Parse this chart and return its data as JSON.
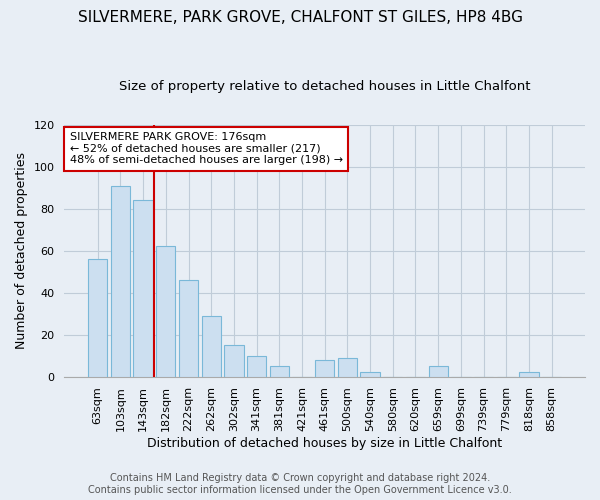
{
  "title": "SILVERMERE, PARK GROVE, CHALFONT ST GILES, HP8 4BG",
  "subtitle": "Size of property relative to detached houses in Little Chalfont",
  "xlabel": "Distribution of detached houses by size in Little Chalfont",
  "ylabel": "Number of detached properties",
  "bin_labels": [
    "63sqm",
    "103sqm",
    "143sqm",
    "182sqm",
    "222sqm",
    "262sqm",
    "302sqm",
    "341sqm",
    "381sqm",
    "421sqm",
    "461sqm",
    "500sqm",
    "540sqm",
    "580sqm",
    "620sqm",
    "659sqm",
    "699sqm",
    "739sqm",
    "779sqm",
    "818sqm",
    "858sqm"
  ],
  "bar_heights": [
    56,
    91,
    84,
    62,
    46,
    29,
    15,
    10,
    5,
    0,
    8,
    9,
    2,
    0,
    0,
    5,
    0,
    0,
    0,
    2,
    0
  ],
  "bar_color": "#ccdff0",
  "bar_edge_color": "#7ab8d8",
  "vline_color": "#cc0000",
  "vline_x_idx": 3,
  "ylim": [
    0,
    120
  ],
  "yticks": [
    0,
    20,
    40,
    60,
    80,
    100,
    120
  ],
  "annotation_text": "SILVERMERE PARK GROVE: 176sqm\n← 52% of detached houses are smaller (217)\n48% of semi-detached houses are larger (198) →",
  "annotation_box_facecolor": "#ffffff",
  "annotation_box_edgecolor": "#cc0000",
  "footer_line1": "Contains HM Land Registry data © Crown copyright and database right 2024.",
  "footer_line2": "Contains public sector information licensed under the Open Government Licence v3.0.",
  "title_fontsize": 11,
  "subtitle_fontsize": 9.5,
  "ylabel_fontsize": 9,
  "xlabel_fontsize": 9,
  "tick_fontsize": 8,
  "annot_fontsize": 8,
  "footer_fontsize": 7,
  "bg_color": "#e8eef5",
  "grid_color": "#c0ccd8",
  "spine_color": "#aaaaaa"
}
